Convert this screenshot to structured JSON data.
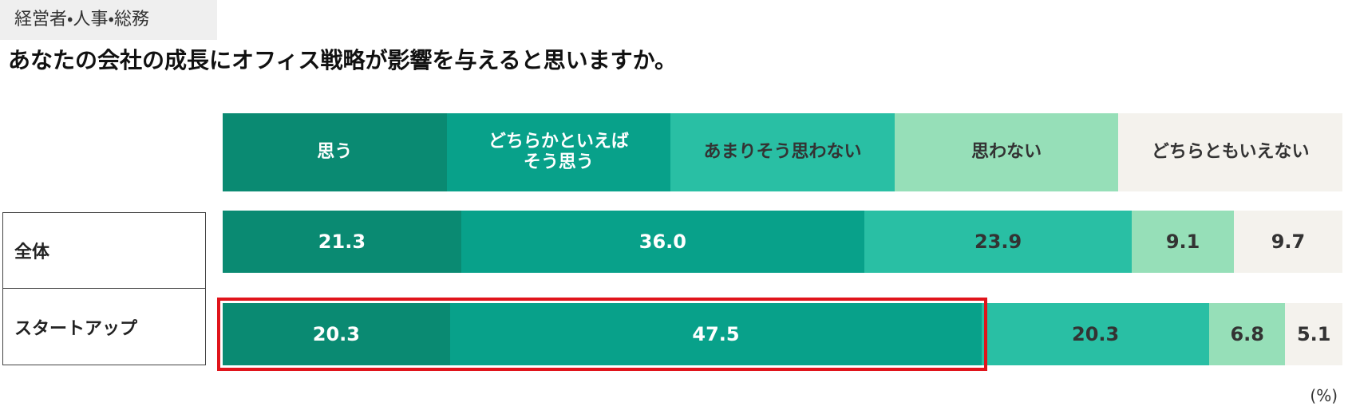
{
  "chart_data": {
    "type": "stacked-bar-horizontal",
    "tag": "経営者・人事・総務",
    "title": "あなたの会社の成長にオフィス戦略が影響を与えると思いますか。",
    "unit": "(%)",
    "categories": [
      "全体",
      "スタートアップ"
    ],
    "series": [
      {
        "name": "思う",
        "color": "#0a8a72",
        "text_color": "#ffffff",
        "values": [
          21.3,
          20.3
        ],
        "value_labels": [
          "21.3",
          "20.3"
        ]
      },
      {
        "name": "どちらかといえば\nそう思う",
        "color": "#08a18a",
        "text_color": "#ffffff",
        "values": [
          36.0,
          47.5
        ],
        "value_labels": [
          "36.0",
          "47.5"
        ]
      },
      {
        "name": "あまりそう思わない",
        "color": "#29bfa4",
        "text_color": "#333333",
        "values": [
          23.9,
          20.3
        ],
        "value_labels": [
          "23.9",
          "20.3"
        ]
      },
      {
        "name": "思わない",
        "color": "#96dfb8",
        "text_color": "#333333",
        "values": [
          9.1,
          6.8
        ],
        "value_labels": [
          "9.1",
          "6.8"
        ]
      },
      {
        "name": "どちらともいえない",
        "color": "#f4f2ed",
        "text_color": "#333333",
        "values": [
          9.7,
          5.1
        ],
        "value_labels": [
          "9.7",
          "5.1"
        ]
      }
    ]
  }
}
